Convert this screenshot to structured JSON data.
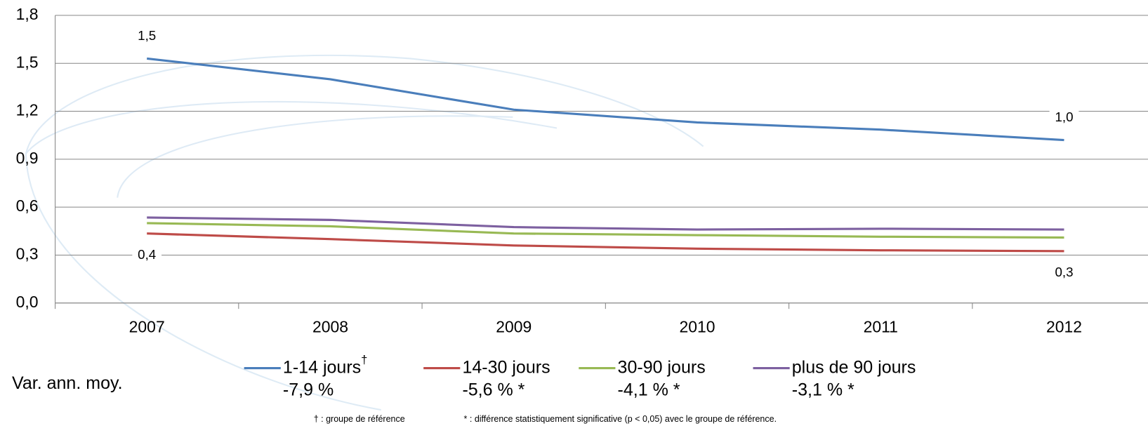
{
  "chart_data": {
    "type": "line",
    "categories": [
      "2007",
      "2008",
      "2009",
      "2010",
      "2011",
      "2012"
    ],
    "ylim": [
      0,
      1.8
    ],
    "yticks": [
      {
        "value": 0,
        "label": "0,0"
      },
      {
        "value": 0.3,
        "label": "0,3"
      },
      {
        "value": 0.6,
        "label": "0,6"
      },
      {
        "value": 0.9,
        "label": "0,9"
      },
      {
        "value": 1.2,
        "label": "1,2"
      },
      {
        "value": 1.5,
        "label": "1,5"
      },
      {
        "value": 1.8,
        "label": "1,8"
      }
    ],
    "grid": true,
    "legend_title": "Var. ann. moy.",
    "series": [
      {
        "name": "1-14 jours",
        "name_mark": "†",
        "note": "-7,9 %",
        "color": "#4a7ebb",
        "values": [
          1.53,
          1.4,
          1.21,
          1.13,
          1.085,
          1.02
        ],
        "value_labels": [
          "1,5",
          null,
          null,
          null,
          null,
          "1,0"
        ]
      },
      {
        "name": "14-30 jours",
        "note": "-5,6 % *",
        "color": "#be4b48",
        "values": [
          0.435,
          0.4,
          0.36,
          0.34,
          0.33,
          0.325
        ],
        "value_labels": [
          "0,4",
          null,
          null,
          null,
          null,
          "0,3"
        ]
      },
      {
        "name": "30-90 jours",
        "note": "-4,1 % *",
        "color": "#98b954",
        "values": [
          0.5,
          0.48,
          0.435,
          0.425,
          0.415,
          0.41
        ]
      },
      {
        "name": "plus de 90 jours",
        "note": "-3,1 % *",
        "color": "#7d60a0",
        "values": [
          0.535,
          0.52,
          0.475,
          0.46,
          0.465,
          0.46
        ]
      }
    ],
    "footnotes": [
      "† : groupe de référence",
      "* : différence statistiquement significative (p < 0,05) avec le groupe de référence."
    ]
  }
}
